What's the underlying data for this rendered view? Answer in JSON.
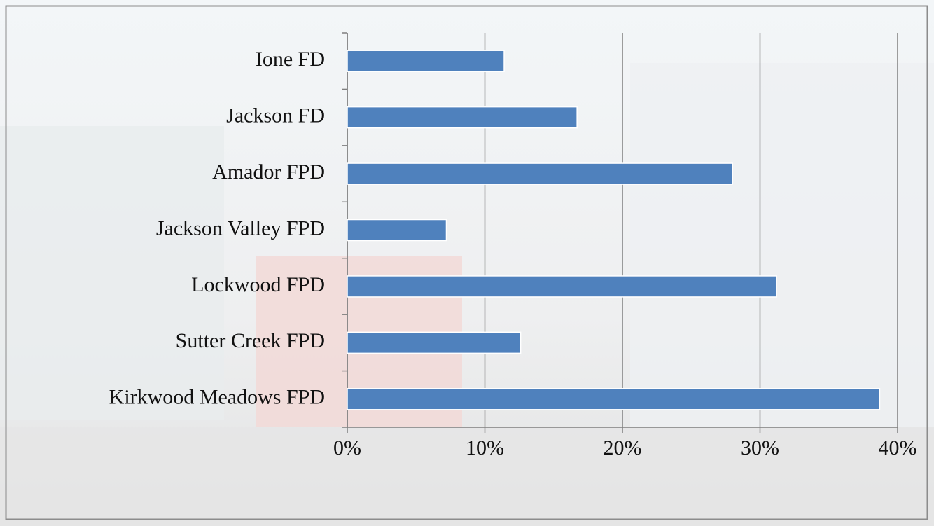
{
  "chart_data": {
    "type": "bar",
    "orientation": "horizontal",
    "categories": [
      "Ione FD",
      "Jackson FD",
      "Amador FPD",
      "Jackson Valley FPD",
      "Lockwood FPD",
      "Sutter Creek FPD",
      "Kirkwood Meadows FPD"
    ],
    "values": [
      11.4,
      16.7,
      28.0,
      7.2,
      31.2,
      12.6,
      38.7
    ],
    "color": "#4f81bd",
    "xlim": [
      0,
      40
    ],
    "xticks": [
      {
        "value": 0,
        "label": "0%"
      },
      {
        "value": 10,
        "label": "10%"
      },
      {
        "value": 20,
        "label": "20%"
      },
      {
        "value": 30,
        "label": "30%"
      },
      {
        "value": 40,
        "label": "40%"
      }
    ],
    "grid": true
  }
}
